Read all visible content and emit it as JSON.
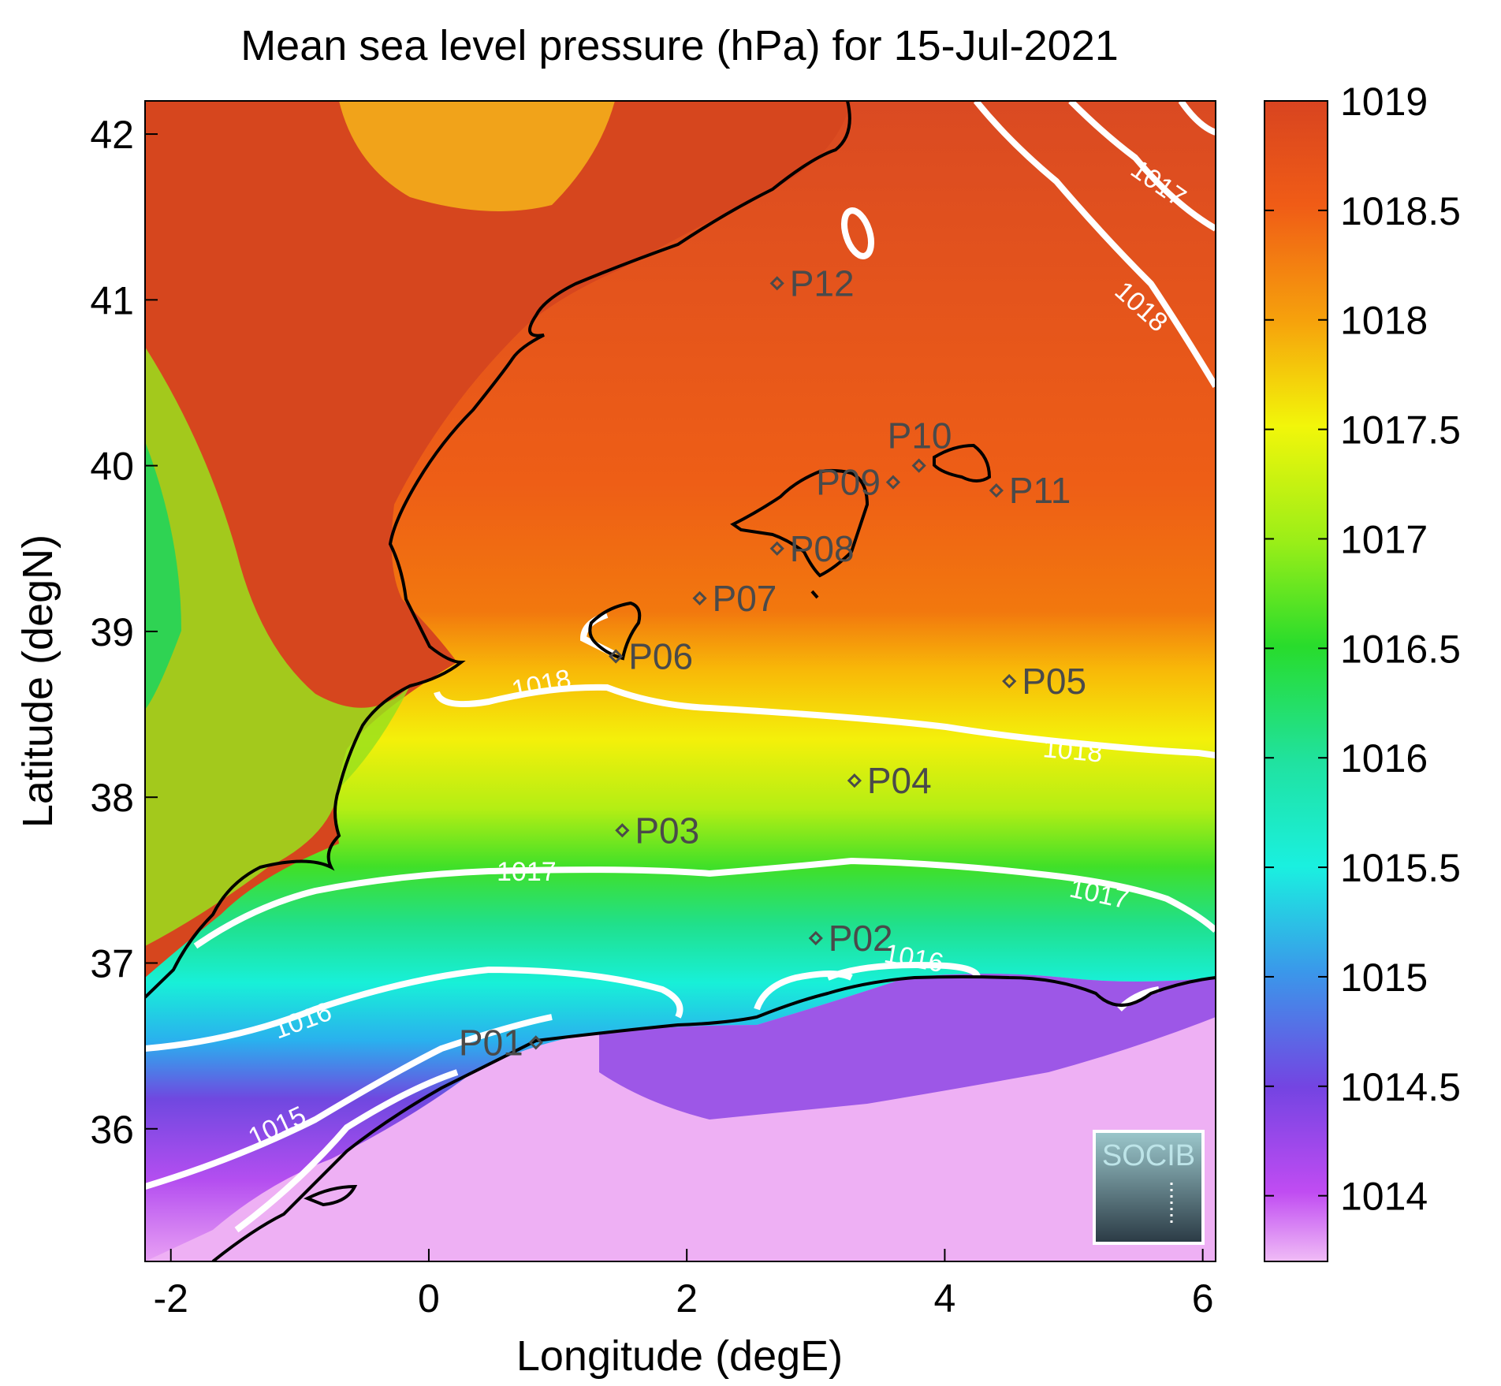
{
  "chart_data": {
    "type": "heatmap",
    "title": "Mean sea level pressure (hPa) for 15-Jul-2021",
    "xlabel": "Longitude (degE)",
    "ylabel": "Latitude (degN)",
    "xlim": [
      -2.2,
      6.1
    ],
    "ylim": [
      35.2,
      42.2
    ],
    "x_ticks": [
      -2,
      0,
      2,
      4,
      6
    ],
    "y_ticks": [
      36,
      37,
      38,
      39,
      40,
      41,
      42
    ],
    "colorbar": {
      "range": [
        1013.7,
        1019.0
      ],
      "ticks": [
        1014,
        1014.5,
        1015,
        1015.5,
        1016,
        1016.5,
        1017,
        1017.5,
        1018,
        1018.5,
        1019
      ],
      "colors": [
        "#f0b8f5",
        "#c54cf0",
        "#7a44e0",
        "#3a8fe8",
        "#18f0d2",
        "#22dc74",
        "#2ee02a",
        "#a8f018",
        "#fcf204",
        "#f8a80c",
        "#f06c18",
        "#d84420"
      ]
    },
    "contour_labels": [
      {
        "label": "1015",
        "lon": -1.65,
        "lat": 35.95
      },
      {
        "label": "1016",
        "lon": -1.5,
        "lat": 36.55
      },
      {
        "label": "1016",
        "lon": 3.55,
        "lat": 36.75
      },
      {
        "label": "1017",
        "lon": 0.75,
        "lat": 37.48
      },
      {
        "label": "1017",
        "lon": 5.0,
        "lat": 37.35
      },
      {
        "label": "1018",
        "lon": 0.85,
        "lat": 38.6
      },
      {
        "label": "1018",
        "lon": 4.95,
        "lat": 38.2
      },
      {
        "label": "1018",
        "lon": 5.4,
        "lat": 40.85
      },
      {
        "label": "1017",
        "lon": 5.3,
        "lat": 41.75
      }
    ],
    "stations": [
      {
        "label": "P01",
        "lon": 0.83,
        "lat": 36.52
      },
      {
        "label": "P02",
        "lon": 3.0,
        "lat": 37.15
      },
      {
        "label": "P03",
        "lon": 1.5,
        "lat": 37.8
      },
      {
        "label": "P04",
        "lon": 3.3,
        "lat": 38.1
      },
      {
        "label": "P05",
        "lon": 4.5,
        "lat": 38.7
      },
      {
        "label": "P06",
        "lon": 1.45,
        "lat": 38.85
      },
      {
        "label": "P07",
        "lon": 2.1,
        "lat": 39.2
      },
      {
        "label": "P08",
        "lon": 2.7,
        "lat": 39.5
      },
      {
        "label": "P09",
        "lon": 3.6,
        "lat": 39.9
      },
      {
        "label": "P10",
        "lon": 3.8,
        "lat": 40.0
      },
      {
        "label": "P11",
        "lon": 4.4,
        "lat": 39.85
      },
      {
        "label": "P12",
        "lon": 2.7,
        "lat": 41.1
      }
    ]
  },
  "logo": {
    "text": "SOCIB"
  }
}
